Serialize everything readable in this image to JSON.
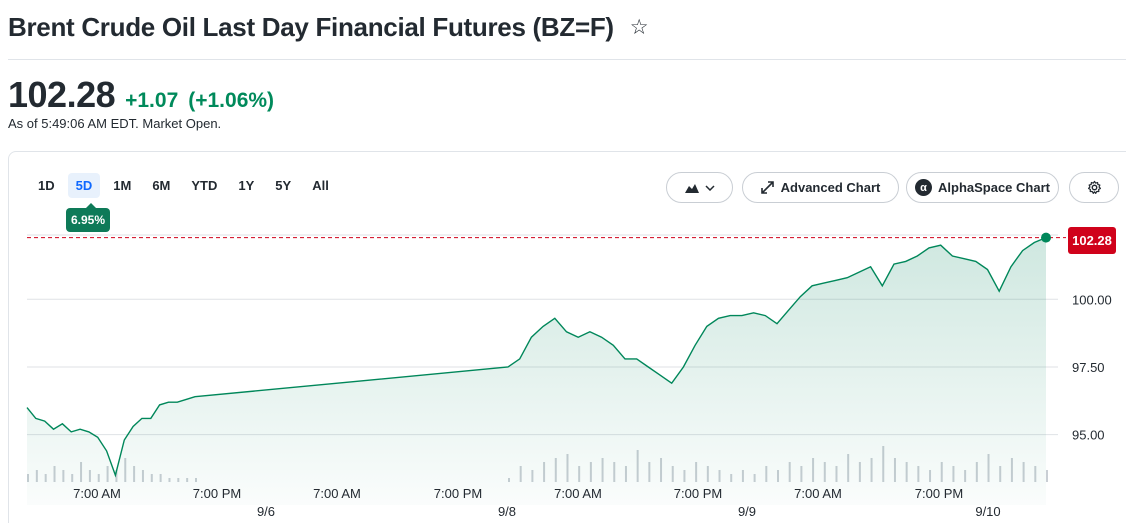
{
  "header": {
    "title": "Brent Crude Oil Last Day Financial Futures (BZ=F)",
    "star_icon": "star-icon"
  },
  "quote": {
    "price": "102.28",
    "change": "+1.07",
    "change_pct": "(+1.06%)",
    "as_of": "As of 5:49:06 AM EDT. Market Open.",
    "up_color": "#008a5b"
  },
  "ranges": [
    {
      "label": "1D",
      "active": false
    },
    {
      "label": "5D",
      "active": true
    },
    {
      "label": "1M",
      "active": false
    },
    {
      "label": "6M",
      "active": false
    },
    {
      "label": "YTD",
      "active": false
    },
    {
      "label": "1Y",
      "active": false
    },
    {
      "label": "5Y",
      "active": false
    },
    {
      "label": "All",
      "active": false
    }
  ],
  "performance_badge": "6.95%",
  "toolbar": {
    "chart_type_icon": "mountain-chart-icon",
    "advanced_label": "Advanced Chart",
    "alphaspace_label": "AlphaSpace Chart",
    "alphaspace_logo": "α",
    "settings_icon": "gear-icon"
  },
  "chart_data": {
    "type": "area",
    "ylim": [
      92.4,
      103.3
    ],
    "yticks": [
      95.0,
      97.5,
      100.0
    ],
    "ytick_labels": [
      "95.00",
      "97.50",
      "100.00"
    ],
    "current_price": 102.28,
    "current_price_label": "102.28",
    "line_color": "#00875a",
    "reference_line_color": "#d0021b",
    "x_time_labels": [
      "7:00 AM",
      "7:00 PM",
      "7:00 AM",
      "7:00 PM",
      "7:00 AM",
      "7:00 PM",
      "7:00 AM",
      "7:00 PM",
      "7:00 AM"
    ],
    "x_date_labels": [
      "9/6",
      "9/8",
      "9/9",
      "9/10"
    ],
    "series": [
      {
        "values": [
          96.0,
          95.6,
          95.5,
          95.2,
          95.4,
          95.1,
          95.2,
          95.1,
          94.9,
          94.4,
          93.5,
          94.8,
          95.3,
          95.6,
          95.6,
          96.1,
          96.2,
          96.2,
          96.3,
          96.4,
          97.5,
          97.8,
          98.6,
          99.0,
          99.3,
          98.8,
          98.6,
          98.8,
          98.6,
          98.3,
          97.8,
          97.8,
          97.5,
          97.2,
          96.9,
          97.5,
          98.3,
          99.0,
          99.3,
          99.4,
          99.4,
          99.5,
          99.4,
          99.1,
          99.6,
          100.1,
          100.5,
          100.6,
          100.7,
          100.8,
          101.0,
          101.2,
          100.5,
          101.3,
          101.4,
          101.6,
          101.9,
          102.0,
          101.6,
          101.5,
          101.4,
          101.1,
          100.3,
          101.2,
          101.8,
          102.1,
          102.28
        ]
      }
    ],
    "volume": [
      2,
      3,
      2,
      4,
      3,
      2,
      5,
      3,
      2,
      4,
      3,
      6,
      4,
      3,
      2,
      2,
      1,
      1,
      1,
      1,
      1,
      4,
      3,
      5,
      6,
      7,
      4,
      5,
      6,
      5,
      4,
      8,
      5,
      6,
      4,
      3,
      5,
      4,
      3,
      2,
      3,
      2,
      4,
      3,
      5,
      4,
      6,
      5,
      4,
      7,
      5,
      6,
      9,
      6,
      5,
      4,
      3,
      5,
      4,
      3,
      5,
      7,
      4,
      6,
      5,
      4,
      3
    ]
  }
}
